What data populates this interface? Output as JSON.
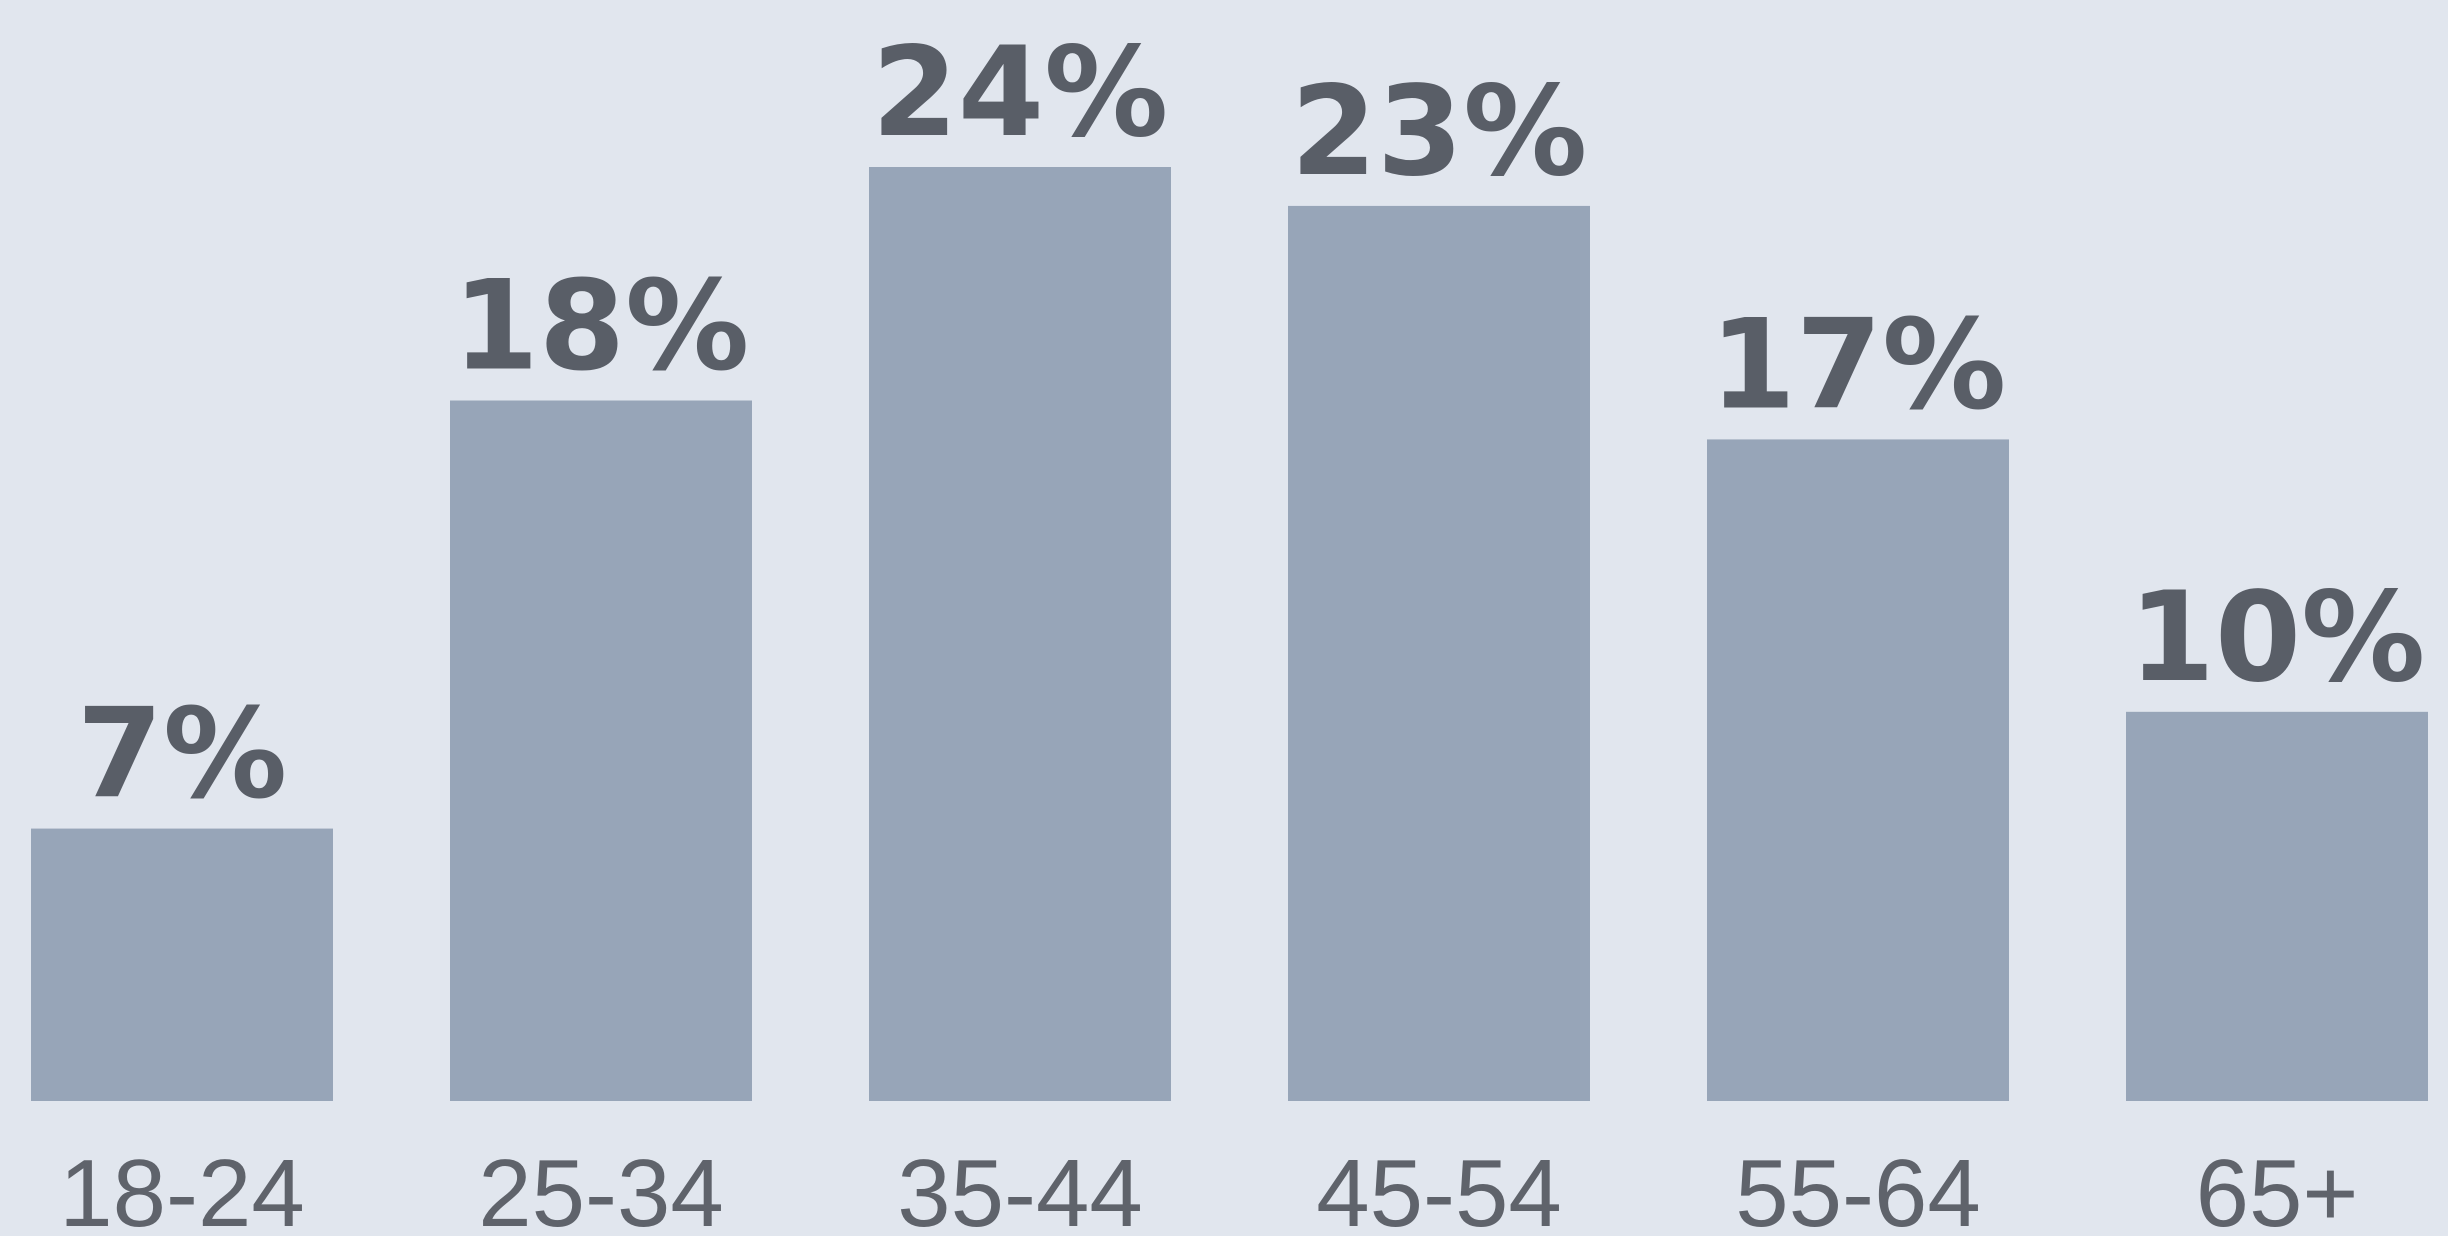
{
  "chart_data": {
    "type": "bar",
    "categories": [
      "18-24",
      "25-34",
      "35-44",
      "45-54",
      "55-64",
      "65+"
    ],
    "values": [
      7,
      18,
      24,
      23,
      17,
      10
    ],
    "value_labels": [
      "7%",
      "18%",
      "24%",
      "23%",
      "17%",
      "10%"
    ],
    "title": "",
    "xlabel": "",
    "ylabel": "",
    "ylim": [
      0,
      24
    ],
    "grid": false,
    "legend": "none",
    "colors": {
      "background": "#e1e6ee",
      "bar": "#97a5b8",
      "value_label": "#595e67",
      "tick_label": "#5f636b"
    }
  }
}
